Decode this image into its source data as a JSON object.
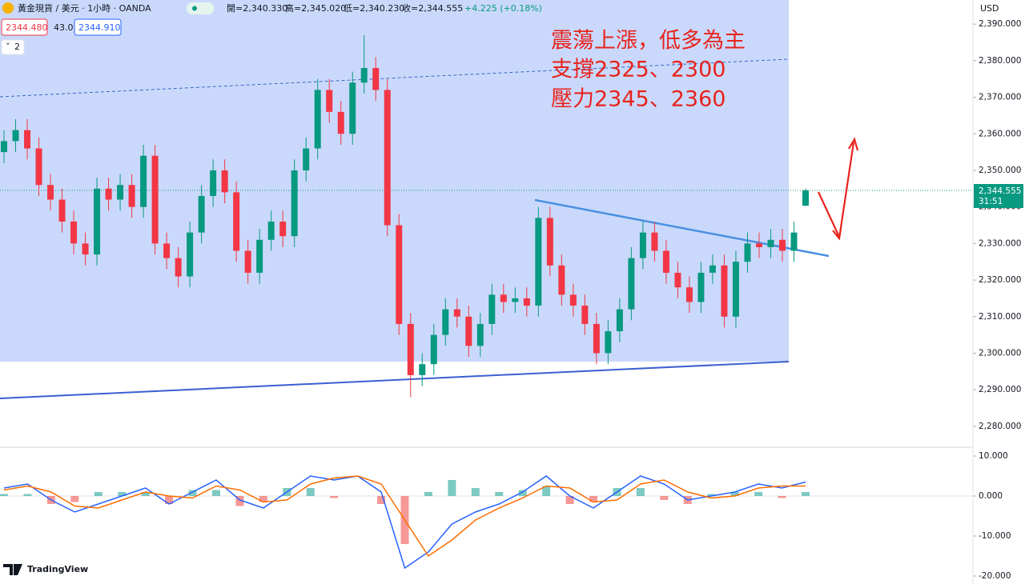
{
  "header": {
    "symbol": "黃金現貨 / 美元 · 1小時 · OANDA",
    "open": "開=2,340.330",
    "high": "高=2,345.020",
    "low": "低=2,340.230",
    "close": "收=2,344.555",
    "change": "+4.225 (+0.18%)",
    "bid": "2344.480",
    "spread": "43.0",
    "ask": "2344.910",
    "indicators": "2",
    "currency": "USD",
    "last_price": "2,344.555",
    "countdown": "31:51",
    "brand": "TradingView"
  },
  "chart_data": [
    {
      "type": "candlestick",
      "annotations": [
        "震蕩上漲，低多為主",
        "支撐2325、2300",
        "壓力2345、2360"
      ],
      "up_color": "#089981",
      "down_color": "#f23645",
      "open": [
        2355,
        2358,
        2361,
        2356,
        2346,
        2342,
        2336,
        2330,
        2327,
        2345,
        2342,
        2346,
        2340,
        2354,
        2330,
        2326,
        2321,
        2333,
        2343,
        2350,
        2344,
        2328,
        2322,
        2331,
        2336,
        2332,
        2350,
        2356,
        2372,
        2366,
        2360,
        2374,
        2378,
        2372,
        2335,
        2308,
        2294,
        2297,
        2305,
        2312,
        2310,
        2302,
        2308,
        2316,
        2314,
        2315,
        2313,
        2337,
        2324,
        2316,
        2313,
        2308,
        2300,
        2306,
        2312,
        2326,
        2333,
        2328,
        2322,
        2318,
        2314,
        2322,
        2324,
        2310,
        2325,
        2330,
        2329,
        2331,
        2328,
        2340.33
      ],
      "high": [
        2361,
        2364,
        2364,
        2359,
        2349,
        2345,
        2339,
        2333,
        2348,
        2348,
        2349,
        2349,
        2357,
        2357,
        2333,
        2329,
        2336,
        2346,
        2353,
        2353,
        2347,
        2331,
        2334,
        2339,
        2339,
        2353,
        2359,
        2375,
        2375,
        2369,
        2377,
        2387,
        2381,
        2375,
        2338,
        2311,
        2300,
        2308,
        2315,
        2315,
        2313,
        2311,
        2319,
        2319,
        2318,
        2318,
        2340,
        2340,
        2327,
        2319,
        2316,
        2311,
        2309,
        2315,
        2329,
        2336,
        2336,
        2331,
        2325,
        2321,
        2325,
        2327,
        2327,
        2328,
        2333,
        2333,
        2334,
        2334,
        2336,
        2345.02
      ],
      "low": [
        2352,
        2355,
        2353,
        2343,
        2339,
        2333,
        2327,
        2324,
        2324,
        2339,
        2339,
        2337,
        2337,
        2327,
        2323,
        2318,
        2318,
        2330,
        2340,
        2341,
        2325,
        2319,
        2319,
        2328,
        2329,
        2329,
        2347,
        2353,
        2363,
        2357,
        2357,
        2371,
        2369,
        2332,
        2305,
        2288,
        2291,
        2294,
        2302,
        2307,
        2299,
        2299,
        2305,
        2311,
        2311,
        2310,
        2310,
        2321,
        2313,
        2310,
        2305,
        2297,
        2297,
        2303,
        2309,
        2323,
        2325,
        2319,
        2315,
        2311,
        2311,
        2319,
        2307,
        2307,
        2322,
        2326,
        2326,
        2325,
        2325,
        2340.23
      ],
      "close": [
        2358,
        2361,
        2356,
        2346,
        2342,
        2336,
        2330,
        2327,
        2345,
        2342,
        2346,
        2340,
        2354,
        2330,
        2326,
        2321,
        2333,
        2343,
        2350,
        2344,
        2328,
        2322,
        2331,
        2336,
        2332,
        2350,
        2356,
        2372,
        2366,
        2360,
        2374,
        2378,
        2372,
        2335,
        2308,
        2294,
        2297,
        2305,
        2312,
        2310,
        2302,
        2308,
        2316,
        2314,
        2315,
        2313,
        2337,
        2324,
        2316,
        2313,
        2308,
        2300,
        2306,
        2312,
        2326,
        2333,
        2328,
        2322,
        2318,
        2314,
        2322,
        2324,
        2310,
        2325,
        2330,
        2329,
        2331,
        2328,
        2333,
        2344.555
      ],
      "ylim": [
        2274.5,
        2396.6
      ],
      "yticks": [
        {
          "value": 2390,
          "label": "2,390.000"
        },
        {
          "value": 2380,
          "label": "2,380.000"
        },
        {
          "value": 2370,
          "label": "2,370.000"
        },
        {
          "value": 2360,
          "label": "2,360.000"
        },
        {
          "value": 2350,
          "label": "2,350.000"
        },
        {
          "value": 2340,
          "label": "2,340.000"
        },
        {
          "value": 2330,
          "label": "2,330.000"
        },
        {
          "value": 2320,
          "label": "2,320.000"
        },
        {
          "value": 2310,
          "label": "2,310.000"
        },
        {
          "value": 2300,
          "label": "2,300.000"
        },
        {
          "value": 2290,
          "label": "2,290.000"
        },
        {
          "value": 2280,
          "label": "2,280.000"
        }
      ]
    },
    {
      "type": "macd",
      "series": [
        {
          "color": "#2962ff",
          "values": [
            2,
            3,
            -1,
            -4,
            -2,
            0,
            2,
            -2,
            1,
            4,
            -1,
            -3,
            1,
            5,
            4,
            5,
            1,
            -18,
            -14,
            -7,
            -4,
            -2,
            1,
            5,
            0,
            -3,
            1,
            5,
            3,
            -1,
            0,
            1,
            3,
            2,
            3.5
          ]
        },
        {
          "color": "#ff6d00",
          "values": [
            1.5,
            2.5,
            1,
            -2.5,
            -3,
            -1,
            1,
            0,
            -0.5,
            2.5,
            1.5,
            -1.5,
            -1,
            3,
            4.5,
            5,
            3,
            -6,
            -15,
            -11,
            -6,
            -3,
            -0.5,
            2.5,
            2,
            -1.5,
            -1,
            3,
            4,
            1,
            -0.5,
            0,
            2,
            2.5,
            2.5
          ]
        }
      ],
      "histogram": [
        0.5,
        0.5,
        -2,
        -1.5,
        1,
        1,
        1,
        -2,
        1.5,
        1.5,
        -2.5,
        -1.5,
        2,
        2,
        -0.5,
        0,
        -2,
        -12,
        1,
        4,
        2,
        1,
        1.5,
        2.5,
        -2,
        -1.5,
        2,
        2,
        -1,
        -2,
        0.5,
        1,
        1,
        -0.5,
        1
      ],
      "up_color": "#26a69a",
      "down_color": "#ef5350",
      "ylim": [
        -22,
        12
      ],
      "yticks": [
        {
          "value": 10,
          "label": "10.000"
        },
        {
          "value": 0,
          "label": "0.000"
        },
        {
          "value": -10,
          "label": "-10.000"
        },
        {
          "value": -20,
          "label": "-20.000"
        }
      ]
    }
  ]
}
